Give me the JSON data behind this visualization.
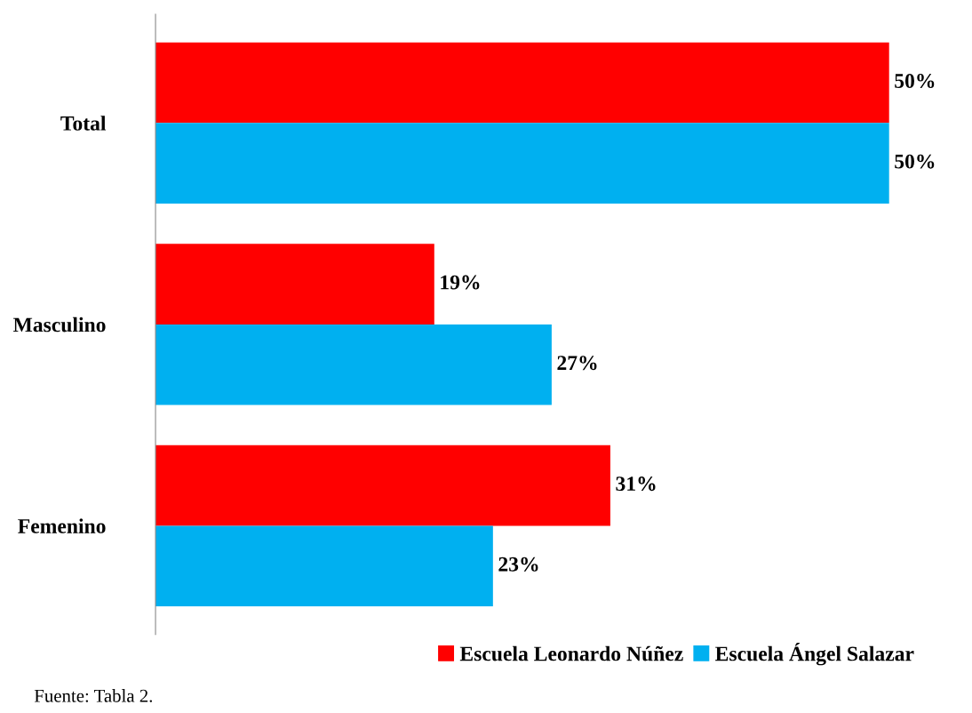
{
  "chart_data": {
    "type": "bar",
    "orientation": "horizontal",
    "categories": [
      "Total",
      "Masculino",
      "Femenino"
    ],
    "series": [
      {
        "name": "Escuela Leonardo Núñez",
        "color": "#ff0000",
        "values": [
          50,
          19,
          31
        ],
        "value_labels": [
          "50%",
          "19%",
          "31%"
        ]
      },
      {
        "name": "Escuela Ángel Salazar",
        "color": "#00b0f0",
        "values": [
          50,
          27,
          23
        ],
        "value_labels": [
          "50%",
          "27%",
          "23%"
        ]
      }
    ],
    "legend": "bottom right",
    "grid": false,
    "annotations": [
      "Fuente: Tabla 2."
    ]
  }
}
